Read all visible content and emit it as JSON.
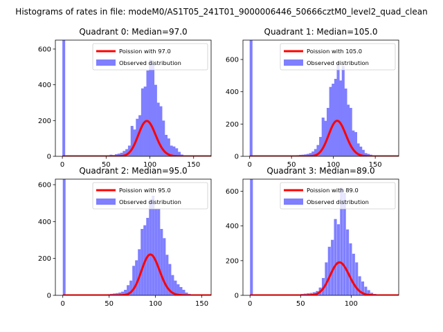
{
  "suptitle": "Histograms of rates in file: modeM0/AS1T05_241T01_9000006446_50666cztM0_level2_quad_clean",
  "colors": {
    "poisson": "#ff0000",
    "hist": "#7f7fff",
    "axes": "#000000"
  },
  "chart_data": [
    {
      "type": "bar",
      "quadrant": 0,
      "title": "Quadrant 0: Median=97.0",
      "median": 97.0,
      "xlim": [
        -8,
        170
      ],
      "ylim": [
        0,
        650
      ],
      "xticks": [
        0,
        50,
        100,
        150
      ],
      "yticks": [
        0,
        200,
        400,
        600
      ],
      "legend": [
        "Poission with 97.0",
        "Observed distribution"
      ],
      "bin_width": 3.2,
      "hist_values": [
        {
          "x": 0,
          "y": 650
        },
        {
          "x": 41,
          "y": 2
        },
        {
          "x": 45,
          "y": 3
        },
        {
          "x": 48,
          "y": 4
        },
        {
          "x": 51,
          "y": 6
        },
        {
          "x": 54,
          "y": 9
        },
        {
          "x": 57,
          "y": 7
        },
        {
          "x": 60,
          "y": 12
        },
        {
          "x": 63,
          "y": 15
        },
        {
          "x": 66,
          "y": 20
        },
        {
          "x": 69,
          "y": 30
        },
        {
          "x": 72,
          "y": 40
        },
        {
          "x": 75,
          "y": 60
        },
        {
          "x": 78,
          "y": 170
        },
        {
          "x": 81,
          "y": 150
        },
        {
          "x": 84,
          "y": 210
        },
        {
          "x": 87,
          "y": 230
        },
        {
          "x": 90,
          "y": 380
        },
        {
          "x": 93,
          "y": 390
        },
        {
          "x": 96,
          "y": 480
        },
        {
          "x": 99,
          "y": 540
        },
        {
          "x": 102,
          "y": 520
        },
        {
          "x": 105,
          "y": 400
        },
        {
          "x": 108,
          "y": 300
        },
        {
          "x": 111,
          "y": 280
        },
        {
          "x": 114,
          "y": 200
        },
        {
          "x": 117,
          "y": 120
        },
        {
          "x": 120,
          "y": 100
        },
        {
          "x": 123,
          "y": 60
        },
        {
          "x": 126,
          "y": 55
        },
        {
          "x": 129,
          "y": 45
        },
        {
          "x": 132,
          "y": 25
        },
        {
          "x": 135,
          "y": 10
        },
        {
          "x": 138,
          "y": 5
        },
        {
          "x": 141,
          "y": 3
        }
      ]
    },
    {
      "type": "bar",
      "quadrant": 1,
      "title": "Quadrant 1: Median=105.0",
      "median": 105.0,
      "xlim": [
        -8,
        178
      ],
      "ylim": [
        0,
        720
      ],
      "xticks": [
        0,
        50,
        100,
        150
      ],
      "yticks": [
        0,
        200,
        400,
        600
      ],
      "legend": [
        "Poission with 105.0",
        "Observed distribution"
      ],
      "bin_width": 3.4,
      "hist_values": [
        {
          "x": 0,
          "y": 720
        },
        {
          "x": 49,
          "y": 3
        },
        {
          "x": 53,
          "y": 5
        },
        {
          "x": 56,
          "y": 7
        },
        {
          "x": 59,
          "y": 9
        },
        {
          "x": 62,
          "y": 10
        },
        {
          "x": 65,
          "y": 12
        },
        {
          "x": 68,
          "y": 15
        },
        {
          "x": 71,
          "y": 20
        },
        {
          "x": 74,
          "y": 30
        },
        {
          "x": 77,
          "y": 45
        },
        {
          "x": 80,
          "y": 70
        },
        {
          "x": 83,
          "y": 120
        },
        {
          "x": 86,
          "y": 240
        },
        {
          "x": 89,
          "y": 220
        },
        {
          "x": 92,
          "y": 300
        },
        {
          "x": 95,
          "y": 430
        },
        {
          "x": 98,
          "y": 450
        },
        {
          "x": 101,
          "y": 480
        },
        {
          "x": 104,
          "y": 580
        },
        {
          "x": 107,
          "y": 470
        },
        {
          "x": 110,
          "y": 560
        },
        {
          "x": 113,
          "y": 420
        },
        {
          "x": 116,
          "y": 320
        },
        {
          "x": 119,
          "y": 300
        },
        {
          "x": 122,
          "y": 160
        },
        {
          "x": 125,
          "y": 150
        },
        {
          "x": 128,
          "y": 80
        },
        {
          "x": 131,
          "y": 60
        },
        {
          "x": 134,
          "y": 40
        },
        {
          "x": 137,
          "y": 20
        },
        {
          "x": 140,
          "y": 15
        },
        {
          "x": 143,
          "y": 10
        },
        {
          "x": 146,
          "y": 5
        }
      ]
    },
    {
      "type": "bar",
      "quadrant": 2,
      "title": "Quadrant 2: Median=95.0",
      "median": 95.0,
      "xlim": [
        -8,
        160
      ],
      "ylim": [
        0,
        630
      ],
      "xticks": [
        0,
        50,
        100,
        150
      ],
      "yticks": [
        0,
        200,
        400,
        600
      ],
      "legend": [
        "Poission with 95.0",
        "Observed distribution"
      ],
      "bin_width": 3.0,
      "hist_values": [
        {
          "x": 0,
          "y": 630
        },
        {
          "x": 45,
          "y": 4
        },
        {
          "x": 48,
          "y": 6
        },
        {
          "x": 51,
          "y": 8
        },
        {
          "x": 54,
          "y": 10
        },
        {
          "x": 57,
          "y": 12
        },
        {
          "x": 60,
          "y": 15
        },
        {
          "x": 63,
          "y": 20
        },
        {
          "x": 66,
          "y": 30
        },
        {
          "x": 69,
          "y": 55
        },
        {
          "x": 72,
          "y": 80
        },
        {
          "x": 75,
          "y": 160
        },
        {
          "x": 78,
          "y": 190
        },
        {
          "x": 81,
          "y": 250
        },
        {
          "x": 84,
          "y": 360
        },
        {
          "x": 87,
          "y": 380
        },
        {
          "x": 90,
          "y": 420
        },
        {
          "x": 93,
          "y": 520
        },
        {
          "x": 96,
          "y": 540
        },
        {
          "x": 99,
          "y": 470
        },
        {
          "x": 102,
          "y": 470
        },
        {
          "x": 105,
          "y": 360
        },
        {
          "x": 108,
          "y": 310
        },
        {
          "x": 111,
          "y": 220
        },
        {
          "x": 114,
          "y": 170
        },
        {
          "x": 117,
          "y": 110
        },
        {
          "x": 120,
          "y": 80
        },
        {
          "x": 123,
          "y": 60
        },
        {
          "x": 126,
          "y": 45
        },
        {
          "x": 129,
          "y": 30
        },
        {
          "x": 132,
          "y": 15
        },
        {
          "x": 135,
          "y": 8
        },
        {
          "x": 138,
          "y": 4
        }
      ]
    },
    {
      "type": "bar",
      "quadrant": 3,
      "title": "Quadrant 3: Median=89.0",
      "median": 89.0,
      "xlim": [
        -7,
        147
      ],
      "ylim": [
        0,
        670
      ],
      "xticks": [
        0,
        50,
        100
      ],
      "yticks": [
        0,
        200,
        400,
        600
      ],
      "legend": [
        "Poission with 89.0",
        "Observed distribution"
      ],
      "bin_width": 2.8,
      "hist_values": [
        {
          "x": 0,
          "y": 670
        },
        {
          "x": 44,
          "y": 3
        },
        {
          "x": 47,
          "y": 5
        },
        {
          "x": 50,
          "y": 8
        },
        {
          "x": 53,
          "y": 10
        },
        {
          "x": 56,
          "y": 12
        },
        {
          "x": 59,
          "y": 14
        },
        {
          "x": 62,
          "y": 18
        },
        {
          "x": 65,
          "y": 25
        },
        {
          "x": 68,
          "y": 45
        },
        {
          "x": 71,
          "y": 100
        },
        {
          "x": 74,
          "y": 190
        },
        {
          "x": 77,
          "y": 280
        },
        {
          "x": 80,
          "y": 320
        },
        {
          "x": 83,
          "y": 440
        },
        {
          "x": 86,
          "y": 410
        },
        {
          "x": 89,
          "y": 620
        },
        {
          "x": 92,
          "y": 590
        },
        {
          "x": 95,
          "y": 380
        },
        {
          "x": 98,
          "y": 300
        },
        {
          "x": 101,
          "y": 240
        },
        {
          "x": 104,
          "y": 190
        },
        {
          "x": 107,
          "y": 110
        },
        {
          "x": 110,
          "y": 80
        },
        {
          "x": 113,
          "y": 50
        },
        {
          "x": 116,
          "y": 30
        },
        {
          "x": 119,
          "y": 15
        },
        {
          "x": 122,
          "y": 8
        }
      ]
    }
  ]
}
